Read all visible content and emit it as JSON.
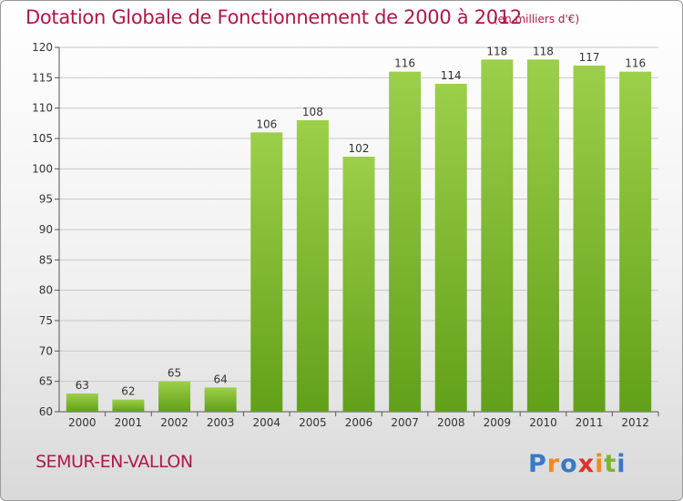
{
  "title": "Dotation Globale de Fonctionnement de 2000 à 2012",
  "unit": "(en milliers d'€)",
  "city": "SEMUR-EN-VALLON",
  "logo_text": "Proxiti",
  "colors": {
    "bar_light": "#9ccf4a",
    "bar_dark": "#62a019",
    "title": "#b0174a",
    "grid": "#c8c8c8"
  },
  "chart_data": {
    "type": "bar",
    "title": "Dotation Globale de Fonctionnement de 2000 à 2012",
    "categories": [
      "2000",
      "2001",
      "2002",
      "2003",
      "2004",
      "2005",
      "2006",
      "2007",
      "2008",
      "2009",
      "2010",
      "2011",
      "2012"
    ],
    "values": [
      63,
      62,
      65,
      64,
      106,
      108,
      102,
      116,
      114,
      118,
      118,
      117,
      116
    ],
    "ylim": [
      60,
      120
    ],
    "yticks": [
      60,
      65,
      70,
      75,
      80,
      85,
      90,
      95,
      100,
      105,
      110,
      115,
      120
    ],
    "grid": true,
    "xlabel": "",
    "ylabel": ""
  }
}
